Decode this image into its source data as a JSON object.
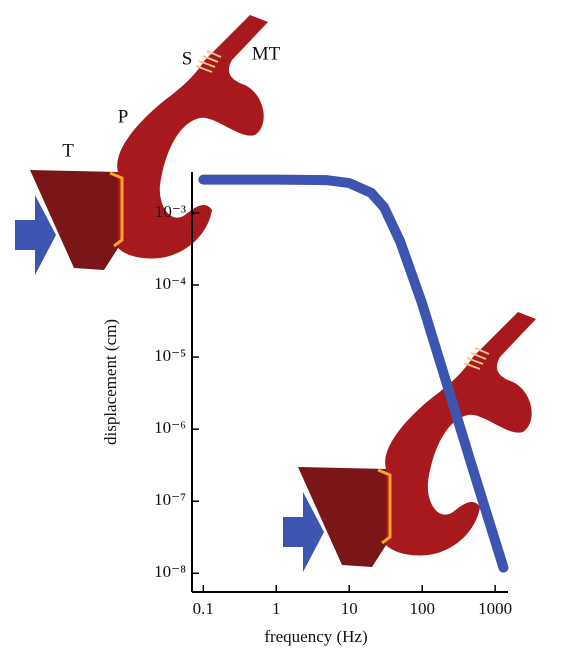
{
  "chart_data": {
    "type": "line",
    "x_label": "frequency (Hz)",
    "y_label": "displacement (cm)",
    "annotations": [
      "T",
      "P",
      "S",
      "MT"
    ],
    "log_x": true,
    "log_y": true,
    "xlim": [
      0.07,
      1500
    ],
    "ylim": [
      5.5e-09,
      0.0037
    ],
    "xticks": [
      0.1,
      1,
      10,
      100,
      1000
    ],
    "yticks": [
      {
        "value": 1e-08,
        "label": "10⁻⁸"
      },
      {
        "value": 1e-07,
        "label": "10⁻⁷"
      },
      {
        "value": 1e-06,
        "label": "10⁻⁶"
      },
      {
        "value": 1e-05,
        "label": "10⁻⁵"
      },
      {
        "value": 0.0001,
        "label": "10⁻⁴"
      },
      {
        "value": 0.001,
        "label": "10⁻³"
      }
    ],
    "x": [
      0.1,
      1,
      5,
      10,
      20,
      30,
      50,
      100,
      200,
      500,
      1300
    ],
    "series": [
      {
        "color": "#3d55b0",
        "values": [
          0.0029,
          0.0029,
          0.00285,
          0.0026,
          0.0019,
          0.0012,
          0.0004,
          5.5e-05,
          5.6e-06,
          2.7e-07,
          1.2e-08
        ]
      }
    ]
  }
}
